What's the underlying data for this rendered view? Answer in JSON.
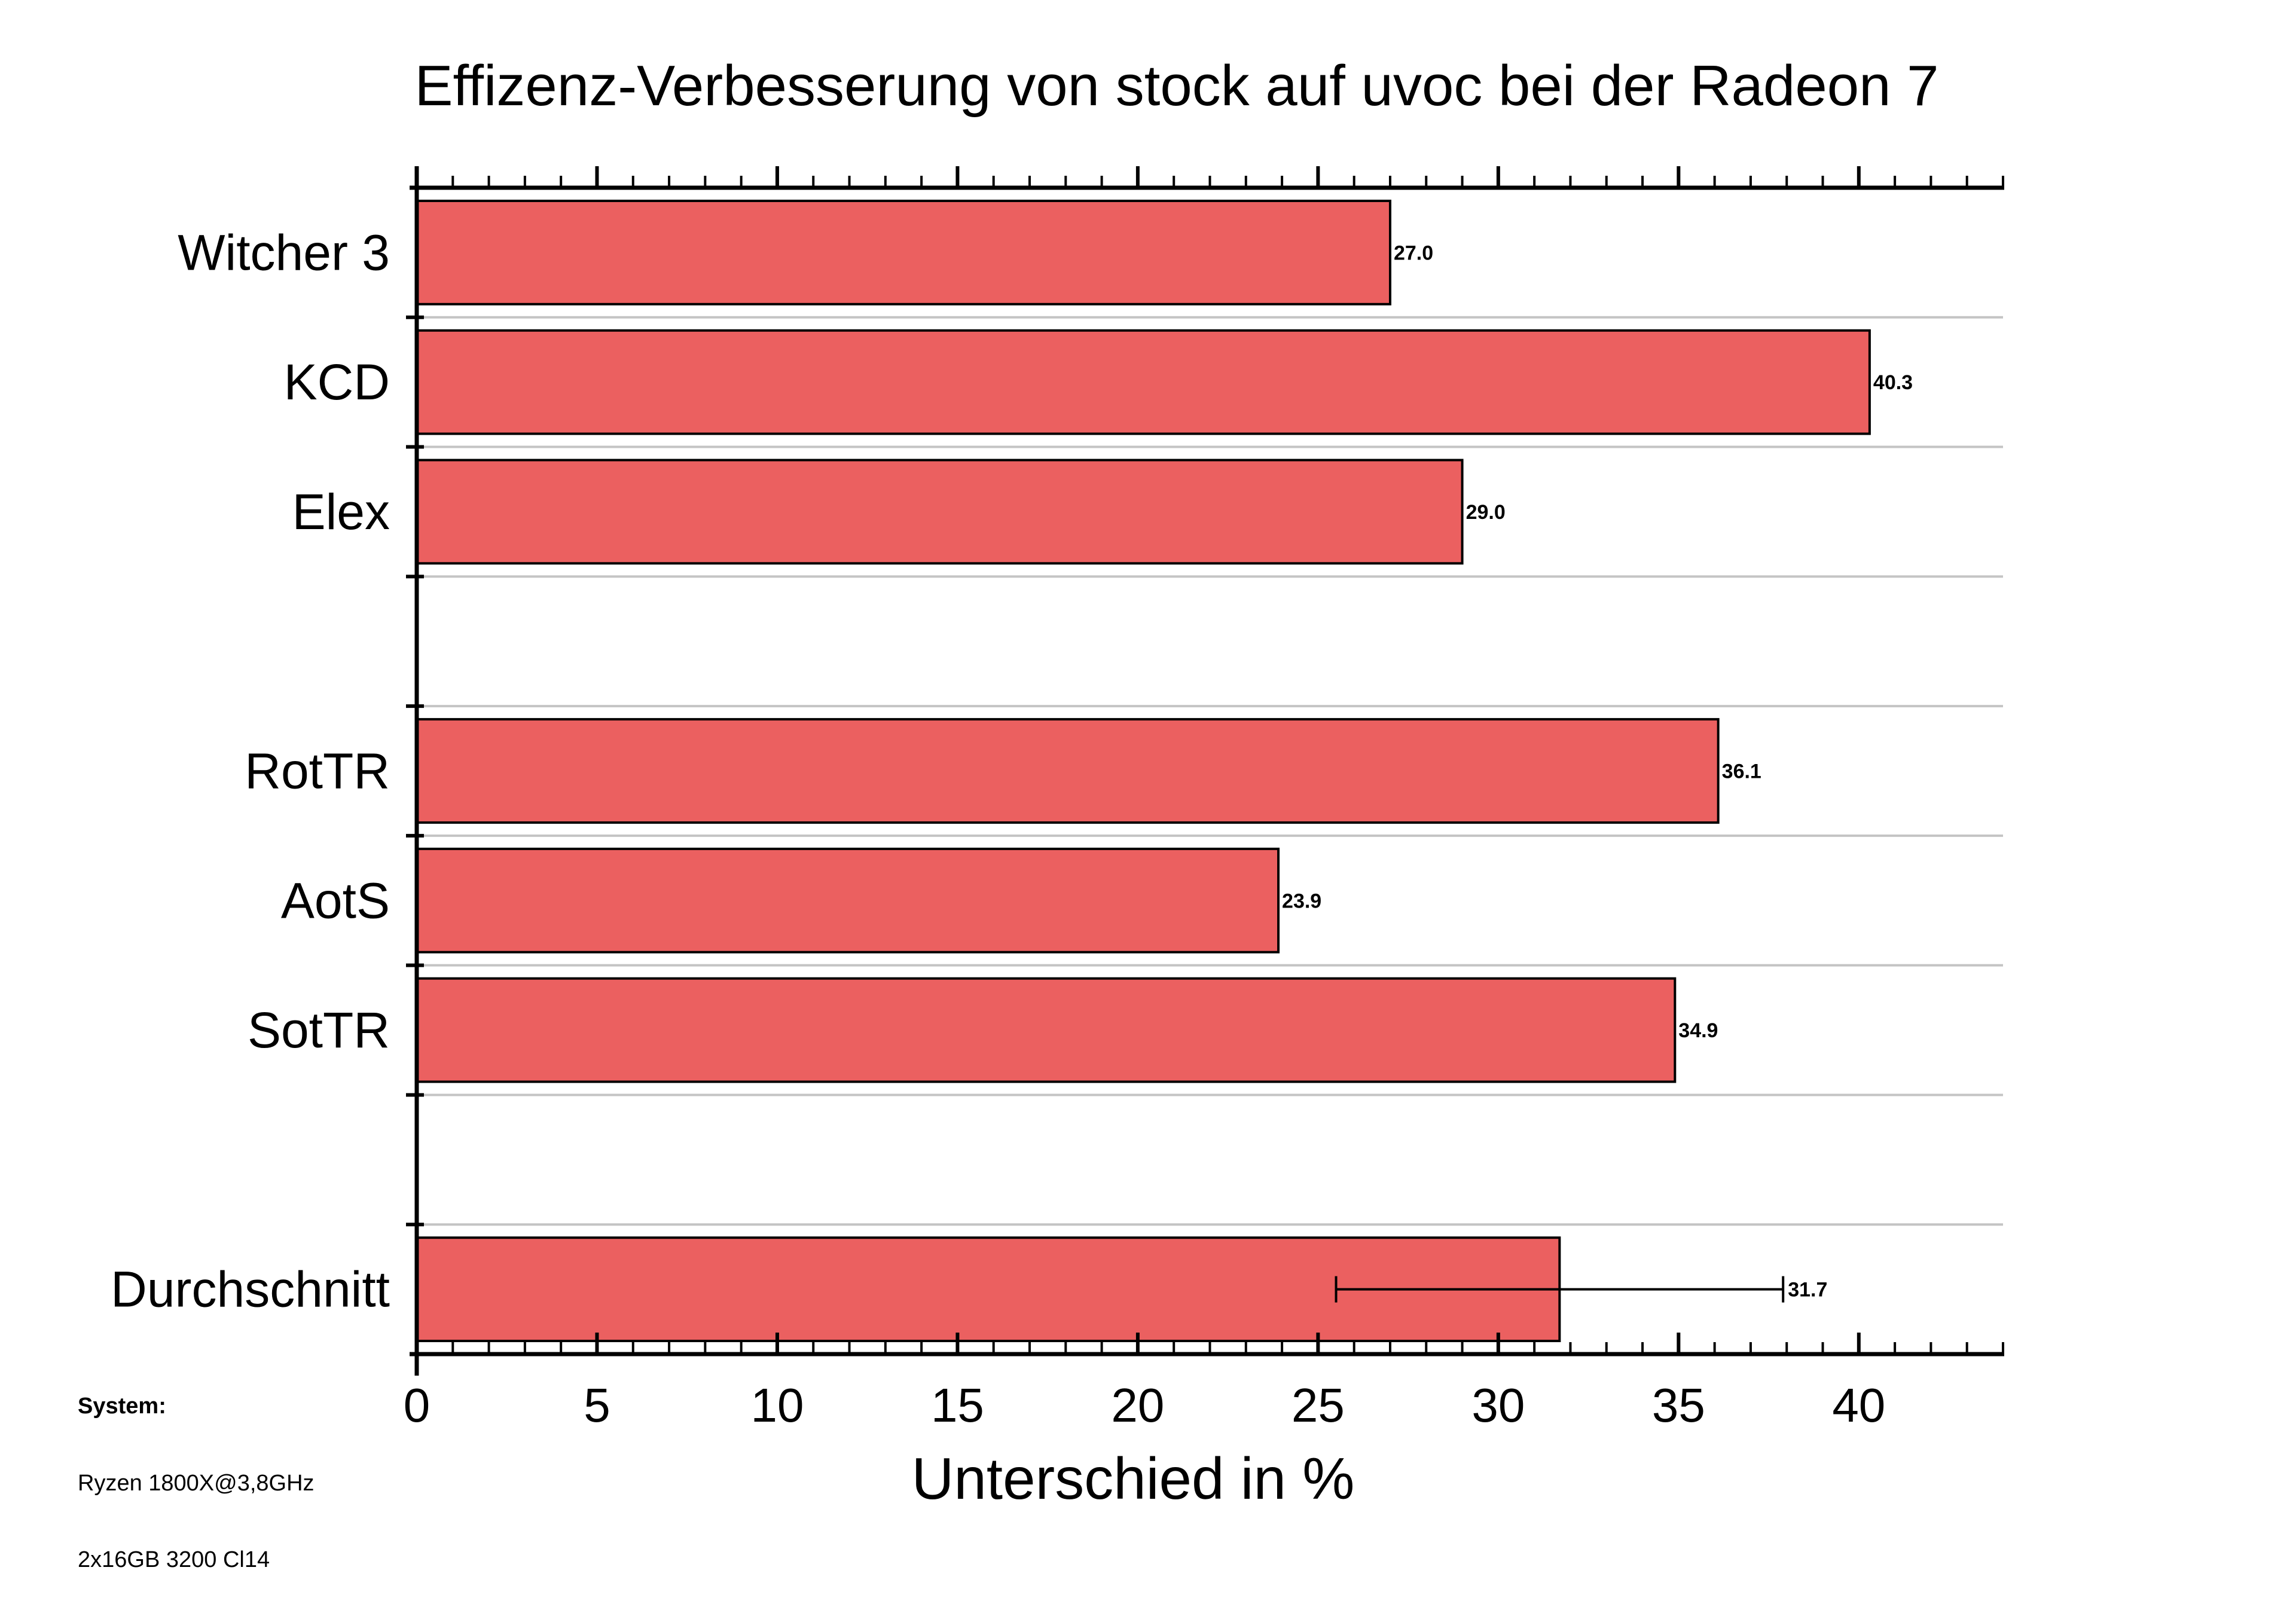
{
  "colors": {
    "bar_fill": "#EB6060",
    "bar_stroke": "#000000",
    "grid": "#C4C4C4"
  },
  "chart_data": {
    "type": "bar",
    "orientation": "horizontal",
    "title": "Effizenz-Verbesserung von stock auf uvoc bei der Radeon 7",
    "xlabel": "Unterschied in %",
    "ylabel": "",
    "xlim": [
      0,
      44
    ],
    "xticks": [
      0,
      5,
      10,
      15,
      20,
      25,
      30,
      35,
      40
    ],
    "tick_labels": [
      "0",
      "5",
      "10",
      "15",
      "20",
      "25",
      "30",
      "35",
      "40"
    ],
    "grid": true,
    "categories": [
      "Witcher 3",
      "KCD",
      "Elex",
      "",
      "RotTR",
      "AotS",
      "SotTR",
      "",
      "Durchschnitt"
    ],
    "series": [
      {
        "name": "Unterschied in %",
        "values": [
          27.0,
          40.3,
          29.0,
          null,
          36.1,
          23.9,
          34.9,
          null,
          31.7
        ],
        "value_labels": [
          "27.0",
          "40.3",
          "29.0",
          "",
          "36.1",
          "23.9",
          "34.9",
          "",
          "31.7"
        ]
      }
    ],
    "error_bar": {
      "category": "Durchschnitt",
      "low": 25.5,
      "high": 37.9
    }
  },
  "system_info": {
    "heading": "System:",
    "lines": [
      "Ryzen 1800X@3,8GHz",
      "2x16GB 3200 Cl14"
    ]
  }
}
